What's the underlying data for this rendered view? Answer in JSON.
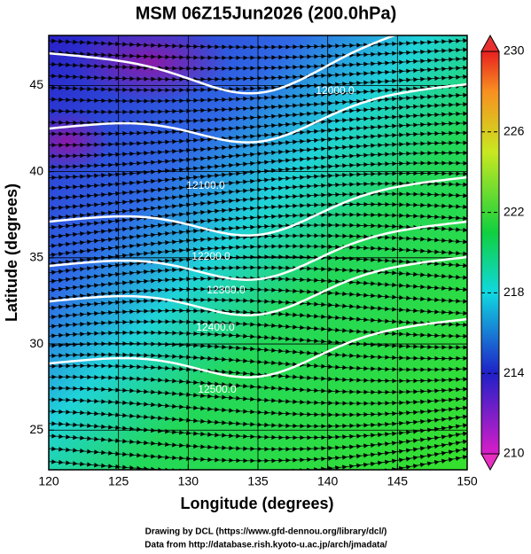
{
  "chart_data": {
    "type": "map",
    "title": "MSM 06Z15Jun2026 (200.0hPa)",
    "xlabel": "Longitude (degrees)",
    "ylabel": "Latitude  (degrees)",
    "xlim": [
      120,
      150
    ],
    "xticks": [
      120,
      125,
      130,
      135,
      140,
      145,
      150
    ],
    "ylim": [
      22.7,
      47.9
    ],
    "yticks": [
      25,
      30,
      35,
      40,
      45
    ],
    "grid": true,
    "colorbar": {
      "lim": [
        210,
        230
      ],
      "ticks": [
        210,
        214,
        218,
        222,
        226,
        230
      ]
    },
    "contour_labels": [
      "12000.0",
      "12100.0",
      "12200.0",
      "12300.0",
      "12400.0",
      "12500.0"
    ],
    "credits": [
      "Drawing by DCL (https://www.gfd-dennou.org/library/dcl/)",
      "Data from http://database.rish.kyoto-u.ac.jp/arch/jmadata/"
    ]
  }
}
